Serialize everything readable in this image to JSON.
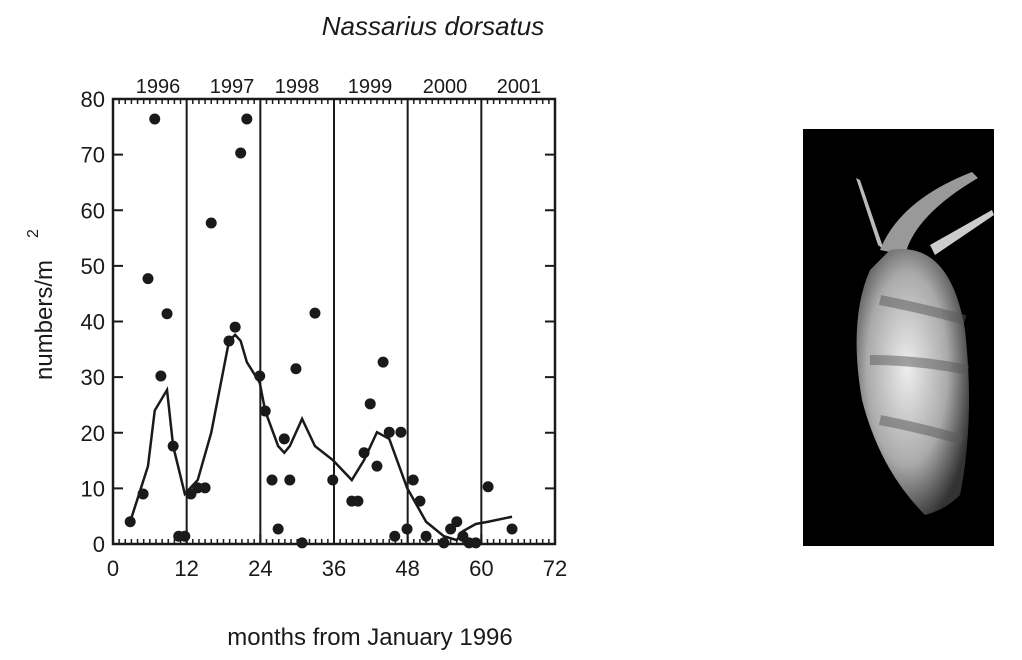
{
  "chart_data": {
    "type": "scatter",
    "title": "Nassarius dorsatus",
    "xlabel": "months from January 1996",
    "ylabel": "numbers/m",
    "ylabel_superscript": "2",
    "xlim": [
      0,
      72
    ],
    "xticks": [
      0,
      12,
      24,
      36,
      48,
      60,
      72
    ],
    "ylim": [
      0,
      80
    ],
    "yticks": [
      0,
      10,
      20,
      30,
      40,
      50,
      60,
      70,
      80
    ],
    "year_labels": [
      "1996",
      "1997",
      "1998",
      "1999",
      "2000",
      "2001"
    ],
    "year_dividers": [
      12,
      24,
      36,
      48,
      60
    ],
    "points": {
      "color": "#1a1a1a",
      "x": [
        2.8,
        4.9,
        5.7,
        6.8,
        7.8,
        8.8,
        9.8,
        10.7,
        11.7,
        12.7,
        13.8,
        15.0,
        16.0,
        18.9,
        19.9,
        20.8,
        21.8,
        23.9,
        24.8,
        25.9,
        26.9,
        27.9,
        28.8,
        29.8,
        30.8,
        32.9,
        35.8,
        38.9,
        39.9,
        40.9,
        41.9,
        43.0,
        44.0,
        45.0,
        45.9,
        46.9,
        47.9,
        48.9,
        50.0,
        51.0,
        53.9,
        55.0,
        56.0,
        57.0,
        58.0,
        59.1,
        61.1,
        65.0
      ],
      "values": [
        4.0,
        9.0,
        47.7,
        76.4,
        30.2,
        41.4,
        17.6,
        1.4,
        1.4,
        9.0,
        10.1,
        10.1,
        57.7,
        36.5,
        39.0,
        70.3,
        76.4,
        30.2,
        23.9,
        11.5,
        2.7,
        18.9,
        11.5,
        31.5,
        0.2,
        41.5,
        11.5,
        7.7,
        7.7,
        16.4,
        25.2,
        14.0,
        32.7,
        20.1,
        1.4,
        20.1,
        2.7,
        11.5,
        7.7,
        1.4,
        0.2,
        2.7,
        4.0,
        1.4,
        0.2,
        0.2,
        10.3,
        2.7
      ]
    },
    "trend": {
      "color": "#1a1a1a",
      "x": [
        2.8,
        5.7,
        6.8,
        8.8,
        9.8,
        11.7,
        13.8,
        16.0,
        18.9,
        19.9,
        20.8,
        21.8,
        23.9,
        24.8,
        26.9,
        27.9,
        28.8,
        30.8,
        32.9,
        35.8,
        38.9,
        40.9,
        43.0,
        45.0,
        47.9,
        51.0,
        53.9,
        56.0,
        57.0,
        59.1,
        61.1,
        65.0
      ],
      "values": [
        4.0,
        14.0,
        24.0,
        27.7,
        17.6,
        9.0,
        11.5,
        20.0,
        36.5,
        37.6,
        36.5,
        32.7,
        29.0,
        23.9,
        17.6,
        16.4,
        17.6,
        22.5,
        17.6,
        15.1,
        11.5,
        15.1,
        20.1,
        18.9,
        10.1,
        4.0,
        1.4,
        0.7,
        2.3,
        3.6,
        4.0,
        4.9
      ]
    }
  }
}
